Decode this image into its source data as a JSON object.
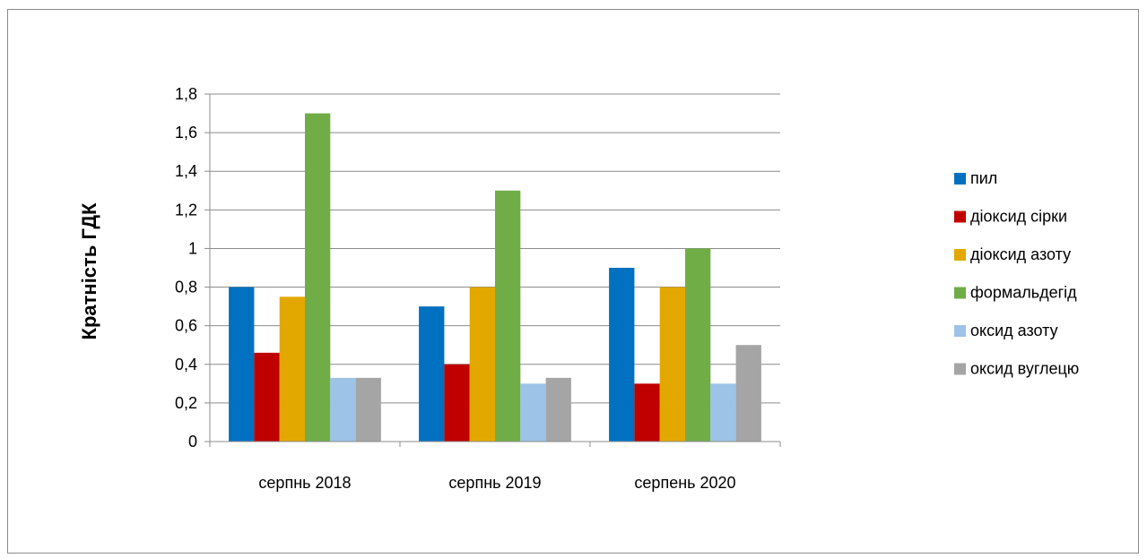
{
  "chart_data": {
    "type": "bar",
    "title": "",
    "xlabel": "",
    "ylabel": "Кратність ГДК",
    "ylim": [
      0,
      1.8
    ],
    "yticks": [
      "0",
      "0,2",
      "0,4",
      "0,6",
      "0,8",
      "1",
      "1,2",
      "1,4",
      "1,6",
      "1,8"
    ],
    "grid": true,
    "legend_position": "right",
    "categories": [
      "серпнь 2018",
      "серпнь 2019",
      "серпень 2020"
    ],
    "series": [
      {
        "name": "пил",
        "color": "#0070C0",
        "values": [
          0.8,
          0.7,
          0.9
        ]
      },
      {
        "name": "діоксид сірки",
        "color": "#C00000",
        "values": [
          0.46,
          0.4,
          0.3
        ]
      },
      {
        "name": "діоксид азоту",
        "color": "#E3A800",
        "values": [
          0.75,
          0.8,
          0.8
        ]
      },
      {
        "name": "формальдегід",
        "color": "#70AD47",
        "values": [
          1.7,
          1.3,
          1.0
        ]
      },
      {
        "name": "оксид азоту",
        "color": "#9DC3E6",
        "values": [
          0.33,
          0.3,
          0.3
        ]
      },
      {
        "name": "оксид вуглецю",
        "color": "#A5A5A5",
        "values": [
          0.33,
          0.33,
          0.5
        ]
      }
    ]
  }
}
